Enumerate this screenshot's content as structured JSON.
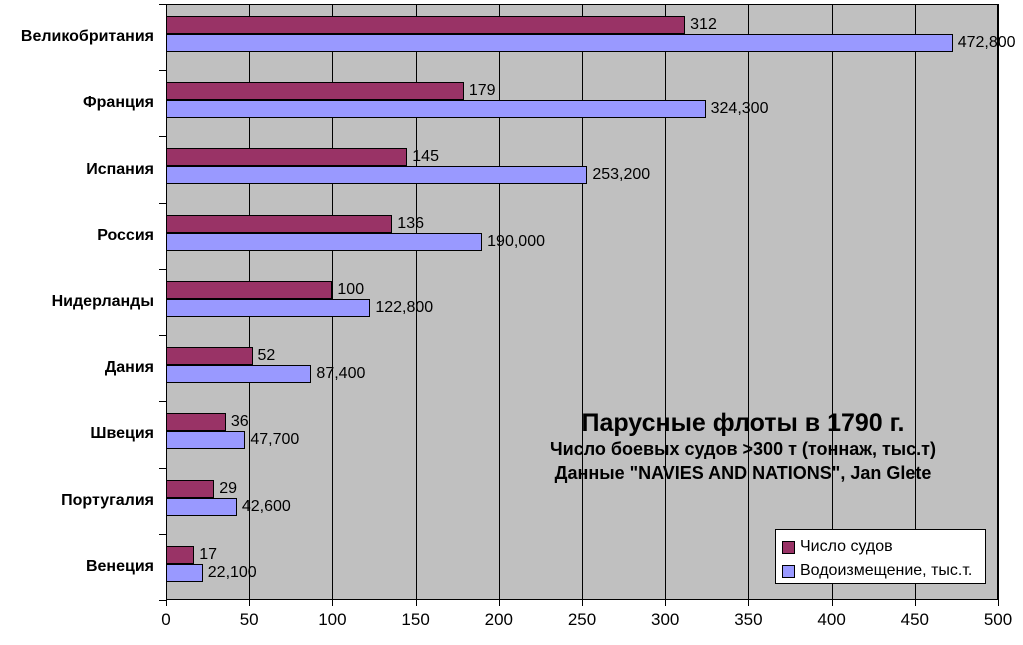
{
  "chart_data": {
    "type": "bar",
    "orientation": "horizontal",
    "title": "Парусные флоты в 1790 г.",
    "subtitle": "Число боевых судов >300 т (тоннаж, тыс.т)",
    "source": "Данные \"NAVIES AND NATIONS\", Jan Glete",
    "categories": [
      "Великобритания",
      "Франция",
      "Испания",
      "Россия",
      "Нидерланды",
      "Дания",
      "Швеция",
      "Португалия",
      "Венеция"
    ],
    "series": [
      {
        "name": "Число судов",
        "color": "#993366",
        "values": [
          312,
          179,
          145,
          136,
          100,
          52,
          36,
          29,
          17
        ],
        "labels": [
          "312",
          "179",
          "145",
          "136",
          "100",
          "52",
          "36",
          "29",
          "17"
        ]
      },
      {
        "name": "Водоизмещение, тыс.т.",
        "color": "#9999ff",
        "values": [
          472.8,
          324.3,
          253.2,
          190.0,
          122.8,
          87.4,
          47.7,
          42.6,
          22.1
        ],
        "labels": [
          "472,800",
          "324,300",
          "253,200",
          "190,000",
          "122,800",
          "87,400",
          "47,700",
          "42,600",
          "22,100"
        ]
      }
    ],
    "xlim": [
      0,
      500
    ],
    "x_ticks": [
      0,
      50,
      100,
      150,
      200,
      250,
      300,
      350,
      400,
      450,
      500
    ],
    "grid": true,
    "legend_position": "bottom-right",
    "colors": {
      "plot_background": "#c0c0c0",
      "chart_background": "#ffffff",
      "gridline": "#000000",
      "bar_border": "#000000",
      "text": "#000000"
    }
  }
}
